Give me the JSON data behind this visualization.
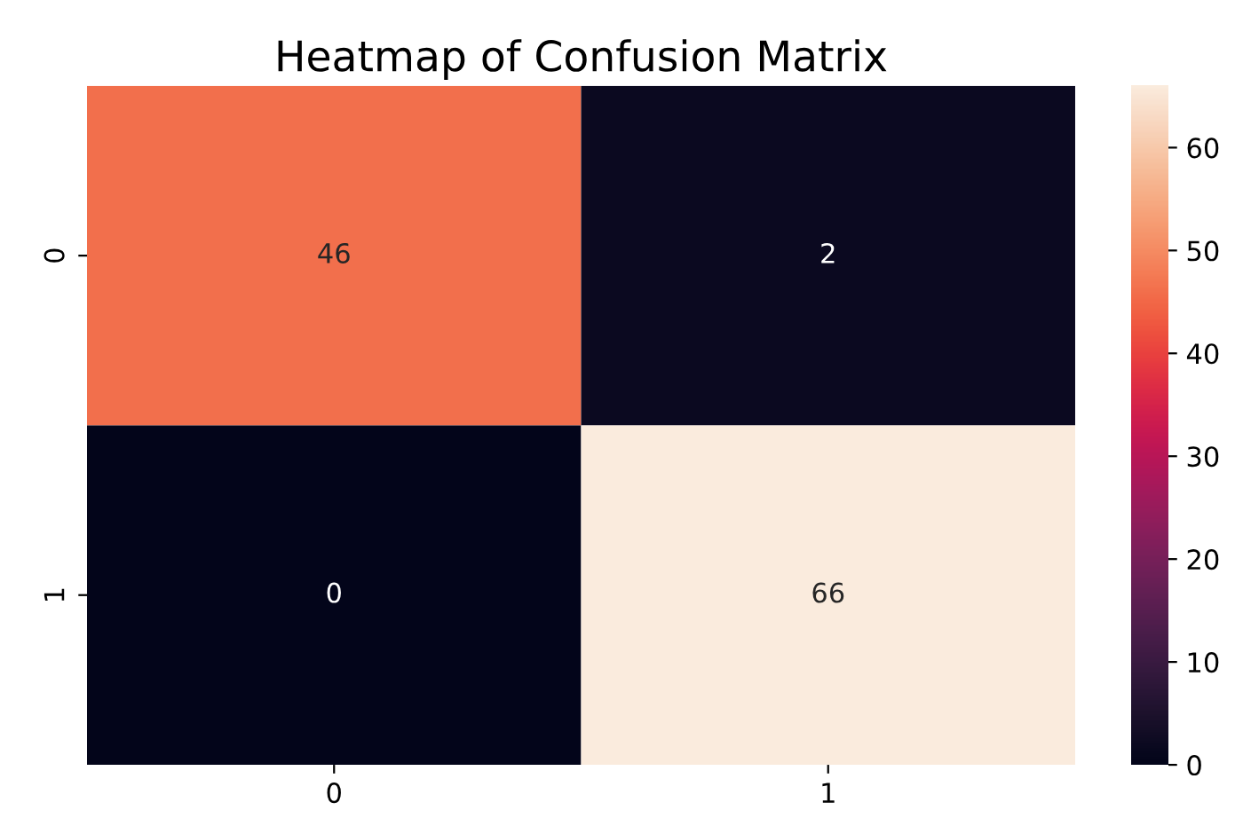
{
  "chart_data": {
    "type": "heatmap",
    "title": "Heatmap of Confusion Matrix",
    "categories": [
      "0",
      "1"
    ],
    "y_categories": [
      "0",
      "1"
    ],
    "cells": [
      [
        46,
        2
      ],
      [
        0,
        66
      ]
    ],
    "data_labels": true,
    "clim": [
      0,
      66
    ],
    "cticks": [
      0,
      10,
      20,
      30,
      40,
      50,
      60
    ]
  }
}
